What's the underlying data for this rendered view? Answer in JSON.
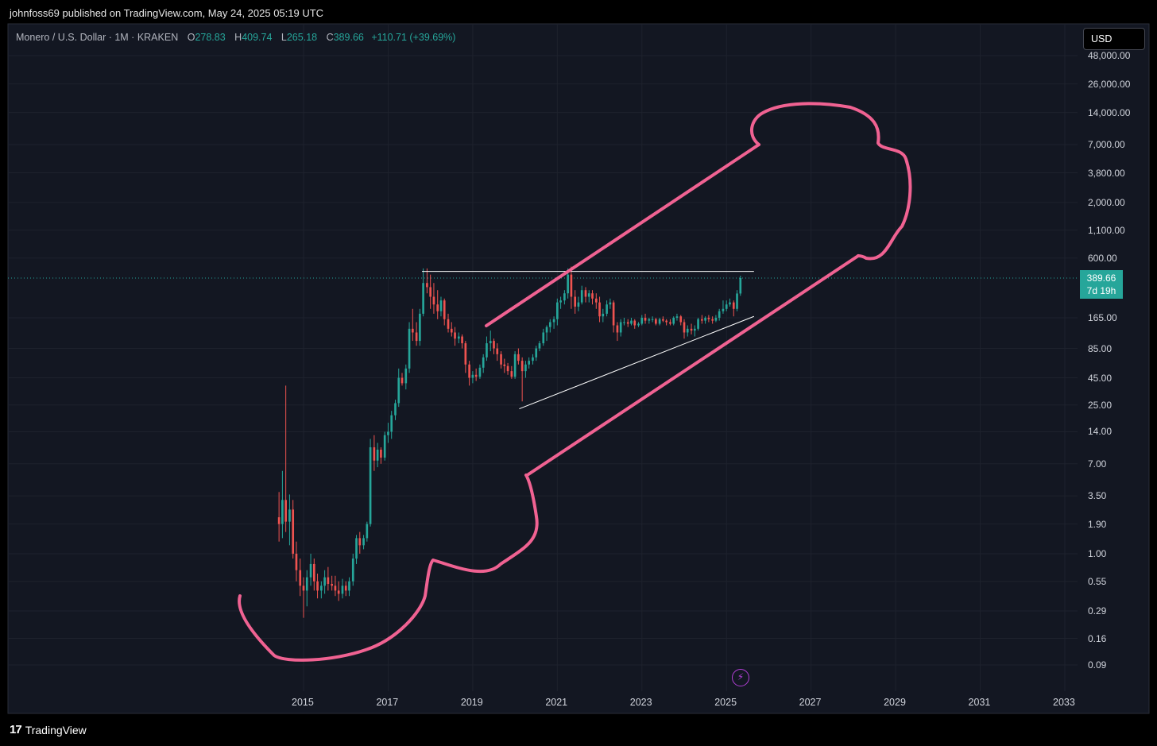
{
  "published": {
    "author": "johnfoss69",
    "text": "johnfoss69 published on TradingView.com, May 24, 2025 05:19 UTC"
  },
  "legend": {
    "symbol": "Monero / U.S. Dollar · 1M · KRAKEN",
    "open_label": "O",
    "open": "278.83",
    "high_label": "H",
    "high": "409.74",
    "low_label": "L",
    "low": "265.18",
    "close_label": "C",
    "close": "389.66",
    "change": "+110.71 (+39.69%)"
  },
  "currency_button": "USD",
  "price_badge": {
    "price": "389.66",
    "countdown": "7d 19h"
  },
  "footer": {
    "logo": "TradingView"
  },
  "colors": {
    "background": "#131722",
    "up": "#26a69a",
    "down": "#ef5350",
    "drawing": "#f06292",
    "trendline": "#ffffff"
  },
  "icons": {
    "bolt": "lightning-icon",
    "logo": "tradingview-logo-icon"
  },
  "chart_data": {
    "type": "candlestick",
    "title": "Monero / U.S. Dollar",
    "interval": "1M",
    "exchange": "KRAKEN",
    "y_scale": "log",
    "y_tick_labels": [
      "48,000.00",
      "26,000.00",
      "14,000.00",
      "7,000.00",
      "3,800.00",
      "2,000.00",
      "1,100.00",
      "600.00",
      "165.00",
      "85.00",
      "45.00",
      "25.00",
      "14.00",
      "7.00",
      "3.50",
      "1.90",
      "1.00",
      "0.55",
      "0.29",
      "0.16",
      "0.09"
    ],
    "y_ticks": [
      48000,
      26000,
      14000,
      7000,
      3800,
      2000,
      1100,
      600,
      165,
      85,
      45,
      25,
      14,
      7,
      3.5,
      1.9,
      1,
      0.55,
      0.29,
      0.16,
      0.09
    ],
    "x_tick_labels": [
      "2015",
      "2017",
      "2019",
      "2021",
      "2023",
      "2025",
      "2027",
      "2029",
      "2031",
      "2033"
    ],
    "x_ticks": [
      2015,
      2017,
      2019,
      2021,
      2023,
      2025,
      2027,
      2029,
      2031,
      2033
    ],
    "x_range": [
      2013.2,
      2033.3
    ],
    "y_range": [
      0.07,
      60000
    ],
    "grid": true,
    "candles": [
      {
        "t": 2014.42,
        "o": 2.2,
        "h": 3.8,
        "l": 1.3,
        "c": 1.9
      },
      {
        "t": 2014.5,
        "o": 1.9,
        "h": 6.0,
        "l": 1.4,
        "c": 3.2
      },
      {
        "t": 2014.58,
        "o": 3.2,
        "h": 38.0,
        "l": 1.6,
        "c": 2.0
      },
      {
        "t": 2014.67,
        "o": 2.0,
        "h": 3.6,
        "l": 1.2,
        "c": 2.6
      },
      {
        "t": 2014.75,
        "o": 2.6,
        "h": 3.2,
        "l": 0.9,
        "c": 1.0
      },
      {
        "t": 2014.83,
        "o": 1.0,
        "h": 1.3,
        "l": 0.55,
        "c": 0.7
      },
      {
        "t": 2014.92,
        "o": 0.7,
        "h": 0.9,
        "l": 0.4,
        "c": 0.5
      },
      {
        "t": 2015.0,
        "o": 0.5,
        "h": 0.6,
        "l": 0.25,
        "c": 0.45
      },
      {
        "t": 2015.08,
        "o": 0.45,
        "h": 0.7,
        "l": 0.32,
        "c": 0.6
      },
      {
        "t": 2015.17,
        "o": 0.6,
        "h": 1.0,
        "l": 0.5,
        "c": 0.8
      },
      {
        "t": 2015.25,
        "o": 0.8,
        "h": 0.9,
        "l": 0.45,
        "c": 0.55
      },
      {
        "t": 2015.33,
        "o": 0.55,
        "h": 0.65,
        "l": 0.38,
        "c": 0.45
      },
      {
        "t": 2015.42,
        "o": 0.45,
        "h": 0.55,
        "l": 0.38,
        "c": 0.5
      },
      {
        "t": 2015.5,
        "o": 0.5,
        "h": 0.7,
        "l": 0.42,
        "c": 0.6
      },
      {
        "t": 2015.58,
        "o": 0.6,
        "h": 0.75,
        "l": 0.45,
        "c": 0.52
      },
      {
        "t": 2015.67,
        "o": 0.52,
        "h": 0.62,
        "l": 0.45,
        "c": 0.5
      },
      {
        "t": 2015.75,
        "o": 0.5,
        "h": 0.62,
        "l": 0.4,
        "c": 0.45
      },
      {
        "t": 2015.83,
        "o": 0.45,
        "h": 0.55,
        "l": 0.36,
        "c": 0.42
      },
      {
        "t": 2015.92,
        "o": 0.42,
        "h": 0.58,
        "l": 0.38,
        "c": 0.5
      },
      {
        "t": 2016.0,
        "o": 0.5,
        "h": 0.55,
        "l": 0.4,
        "c": 0.45
      },
      {
        "t": 2016.08,
        "o": 0.45,
        "h": 0.6,
        "l": 0.4,
        "c": 0.55
      },
      {
        "t": 2016.17,
        "o": 0.55,
        "h": 1.0,
        "l": 0.5,
        "c": 0.9
      },
      {
        "t": 2016.25,
        "o": 0.9,
        "h": 1.5,
        "l": 0.8,
        "c": 1.4
      },
      {
        "t": 2016.33,
        "o": 1.4,
        "h": 1.6,
        "l": 1.0,
        "c": 1.2
      },
      {
        "t": 2016.42,
        "o": 1.2,
        "h": 1.5,
        "l": 1.1,
        "c": 1.4
      },
      {
        "t": 2016.5,
        "o": 1.4,
        "h": 2.0,
        "l": 1.3,
        "c": 1.9
      },
      {
        "t": 2016.58,
        "o": 1.9,
        "h": 12.0,
        "l": 1.8,
        "c": 10.0
      },
      {
        "t": 2016.67,
        "o": 10.0,
        "h": 13.0,
        "l": 6.0,
        "c": 7.5
      },
      {
        "t": 2016.75,
        "o": 7.5,
        "h": 11.0,
        "l": 6.5,
        "c": 9.5
      },
      {
        "t": 2016.83,
        "o": 9.5,
        "h": 10.0,
        "l": 7.0,
        "c": 8.0
      },
      {
        "t": 2016.92,
        "o": 8.0,
        "h": 14.0,
        "l": 7.5,
        "c": 13.0
      },
      {
        "t": 2017.0,
        "o": 13.0,
        "h": 17.0,
        "l": 11.0,
        "c": 14.0
      },
      {
        "t": 2017.08,
        "o": 14.0,
        "h": 22.0,
        "l": 12.0,
        "c": 20.0
      },
      {
        "t": 2017.17,
        "o": 20.0,
        "h": 28.0,
        "l": 18.0,
        "c": 26.0
      },
      {
        "t": 2017.25,
        "o": 26.0,
        "h": 55.0,
        "l": 24.0,
        "c": 45.0
      },
      {
        "t": 2017.33,
        "o": 45.0,
        "h": 50.0,
        "l": 38.0,
        "c": 40.0
      },
      {
        "t": 2017.42,
        "o": 40.0,
        "h": 60.0,
        "l": 35.0,
        "c": 55.0
      },
      {
        "t": 2017.5,
        "o": 55.0,
        "h": 150.0,
        "l": 50.0,
        "c": 130.0
      },
      {
        "t": 2017.58,
        "o": 130.0,
        "h": 200.0,
        "l": 100.0,
        "c": 120.0
      },
      {
        "t": 2017.67,
        "o": 120.0,
        "h": 150.0,
        "l": 90.0,
        "c": 100.0
      },
      {
        "t": 2017.75,
        "o": 100.0,
        "h": 200.0,
        "l": 90.0,
        "c": 180.0
      },
      {
        "t": 2017.83,
        "o": 180.0,
        "h": 480.0,
        "l": 170.0,
        "c": 350.0
      },
      {
        "t": 2017.92,
        "o": 350.0,
        "h": 480.0,
        "l": 280.0,
        "c": 320.0
      },
      {
        "t": 2018.0,
        "o": 320.0,
        "h": 420.0,
        "l": 200.0,
        "c": 260.0
      },
      {
        "t": 2018.08,
        "o": 260.0,
        "h": 350.0,
        "l": 180.0,
        "c": 220.0
      },
      {
        "t": 2018.17,
        "o": 220.0,
        "h": 300.0,
        "l": 160.0,
        "c": 190.0
      },
      {
        "t": 2018.25,
        "o": 190.0,
        "h": 260.0,
        "l": 170.0,
        "c": 240.0
      },
      {
        "t": 2018.33,
        "o": 240.0,
        "h": 250.0,
        "l": 140.0,
        "c": 160.0
      },
      {
        "t": 2018.42,
        "o": 160.0,
        "h": 180.0,
        "l": 120.0,
        "c": 130.0
      },
      {
        "t": 2018.5,
        "o": 130.0,
        "h": 150.0,
        "l": 110.0,
        "c": 120.0
      },
      {
        "t": 2018.58,
        "o": 120.0,
        "h": 135.0,
        "l": 90.0,
        "c": 105.0
      },
      {
        "t": 2018.67,
        "o": 105.0,
        "h": 120.0,
        "l": 95.0,
        "c": 110.0
      },
      {
        "t": 2018.75,
        "o": 110.0,
        "h": 115.0,
        "l": 85.0,
        "c": 95.0
      },
      {
        "t": 2018.83,
        "o": 95.0,
        "h": 100.0,
        "l": 50.0,
        "c": 60.0
      },
      {
        "t": 2018.92,
        "o": 60.0,
        "h": 65.0,
        "l": 38.0,
        "c": 45.0
      },
      {
        "t": 2019.0,
        "o": 45.0,
        "h": 52.0,
        "l": 40.0,
        "c": 48.0
      },
      {
        "t": 2019.08,
        "o": 48.0,
        "h": 55.0,
        "l": 42.0,
        "c": 46.0
      },
      {
        "t": 2019.17,
        "o": 46.0,
        "h": 60.0,
        "l": 44.0,
        "c": 56.0
      },
      {
        "t": 2019.25,
        "o": 56.0,
        "h": 75.0,
        "l": 50.0,
        "c": 70.0
      },
      {
        "t": 2019.33,
        "o": 70.0,
        "h": 110.0,
        "l": 65.0,
        "c": 95.0
      },
      {
        "t": 2019.42,
        "o": 95.0,
        "h": 125.0,
        "l": 80.0,
        "c": 100.0
      },
      {
        "t": 2019.5,
        "o": 100.0,
        "h": 105.0,
        "l": 75.0,
        "c": 85.0
      },
      {
        "t": 2019.58,
        "o": 85.0,
        "h": 95.0,
        "l": 65.0,
        "c": 75.0
      },
      {
        "t": 2019.67,
        "o": 75.0,
        "h": 80.0,
        "l": 55.0,
        "c": 60.0
      },
      {
        "t": 2019.75,
        "o": 60.0,
        "h": 68.0,
        "l": 50.0,
        "c": 58.0
      },
      {
        "t": 2019.83,
        "o": 58.0,
        "h": 62.0,
        "l": 48.0,
        "c": 52.0
      },
      {
        "t": 2019.92,
        "o": 52.0,
        "h": 58.0,
        "l": 44.0,
        "c": 46.0
      },
      {
        "t": 2020.0,
        "o": 46.0,
        "h": 80.0,
        "l": 44.0,
        "c": 75.0
      },
      {
        "t": 2020.08,
        "o": 75.0,
        "h": 85.0,
        "l": 60.0,
        "c": 65.0
      },
      {
        "t": 2020.17,
        "o": 65.0,
        "h": 70.0,
        "l": 27.0,
        "c": 52.0
      },
      {
        "t": 2020.25,
        "o": 52.0,
        "h": 65.0,
        "l": 45.0,
        "c": 60.0
      },
      {
        "t": 2020.33,
        "o": 60.0,
        "h": 70.0,
        "l": 55.0,
        "c": 65.0
      },
      {
        "t": 2020.42,
        "o": 65.0,
        "h": 75.0,
        "l": 60.0,
        "c": 70.0
      },
      {
        "t": 2020.5,
        "o": 70.0,
        "h": 90.0,
        "l": 65.0,
        "c": 85.0
      },
      {
        "t": 2020.58,
        "o": 85.0,
        "h": 100.0,
        "l": 80.0,
        "c": 95.0
      },
      {
        "t": 2020.67,
        "o": 95.0,
        "h": 130.0,
        "l": 90.0,
        "c": 120.0
      },
      {
        "t": 2020.75,
        "o": 120.0,
        "h": 140.0,
        "l": 100.0,
        "c": 135.0
      },
      {
        "t": 2020.83,
        "o": 135.0,
        "h": 160.0,
        "l": 120.0,
        "c": 150.0
      },
      {
        "t": 2020.92,
        "o": 150.0,
        "h": 170.0,
        "l": 130.0,
        "c": 160.0
      },
      {
        "t": 2021.0,
        "o": 160.0,
        "h": 250.0,
        "l": 140.0,
        "c": 230.0
      },
      {
        "t": 2021.08,
        "o": 230.0,
        "h": 260.0,
        "l": 200.0,
        "c": 240.0
      },
      {
        "t": 2021.17,
        "o": 240.0,
        "h": 300.0,
        "l": 220.0,
        "c": 280.0
      },
      {
        "t": 2021.25,
        "o": 280.0,
        "h": 480.0,
        "l": 250.0,
        "c": 420.0
      },
      {
        "t": 2021.33,
        "o": 420.0,
        "h": 500.0,
        "l": 200.0,
        "c": 260.0
      },
      {
        "t": 2021.42,
        "o": 260.0,
        "h": 300.0,
        "l": 180.0,
        "c": 210.0
      },
      {
        "t": 2021.5,
        "o": 210.0,
        "h": 260.0,
        "l": 190.0,
        "c": 230.0
      },
      {
        "t": 2021.58,
        "o": 230.0,
        "h": 330.0,
        "l": 220.0,
        "c": 300.0
      },
      {
        "t": 2021.67,
        "o": 300.0,
        "h": 320.0,
        "l": 230.0,
        "c": 260.0
      },
      {
        "t": 2021.75,
        "o": 260.0,
        "h": 300.0,
        "l": 230.0,
        "c": 280.0
      },
      {
        "t": 2021.83,
        "o": 280.0,
        "h": 300.0,
        "l": 220.0,
        "c": 250.0
      },
      {
        "t": 2021.92,
        "o": 250.0,
        "h": 280.0,
        "l": 200.0,
        "c": 230.0
      },
      {
        "t": 2022.0,
        "o": 230.0,
        "h": 260.0,
        "l": 150.0,
        "c": 170.0
      },
      {
        "t": 2022.08,
        "o": 170.0,
        "h": 200.0,
        "l": 150.0,
        "c": 180.0
      },
      {
        "t": 2022.17,
        "o": 180.0,
        "h": 240.0,
        "l": 170.0,
        "c": 220.0
      },
      {
        "t": 2022.25,
        "o": 220.0,
        "h": 250.0,
        "l": 200.0,
        "c": 230.0
      },
      {
        "t": 2022.33,
        "o": 230.0,
        "h": 240.0,
        "l": 120.0,
        "c": 140.0
      },
      {
        "t": 2022.42,
        "o": 140.0,
        "h": 150.0,
        "l": 100.0,
        "c": 120.0
      },
      {
        "t": 2022.5,
        "o": 120.0,
        "h": 160.0,
        "l": 110.0,
        "c": 150.0
      },
      {
        "t": 2022.58,
        "o": 150.0,
        "h": 165.0,
        "l": 140.0,
        "c": 150.0
      },
      {
        "t": 2022.67,
        "o": 150.0,
        "h": 160.0,
        "l": 135.0,
        "c": 145.0
      },
      {
        "t": 2022.75,
        "o": 145.0,
        "h": 165.0,
        "l": 140.0,
        "c": 155.0
      },
      {
        "t": 2022.83,
        "o": 155.0,
        "h": 160.0,
        "l": 130.0,
        "c": 140.0
      },
      {
        "t": 2022.92,
        "o": 140.0,
        "h": 150.0,
        "l": 135.0,
        "c": 145.0
      },
      {
        "t": 2023.0,
        "o": 145.0,
        "h": 175.0,
        "l": 140.0,
        "c": 165.0
      },
      {
        "t": 2023.08,
        "o": 165.0,
        "h": 180.0,
        "l": 145.0,
        "c": 155.0
      },
      {
        "t": 2023.17,
        "o": 155.0,
        "h": 165.0,
        "l": 145.0,
        "c": 160.0
      },
      {
        "t": 2023.25,
        "o": 160.0,
        "h": 170.0,
        "l": 150.0,
        "c": 160.0
      },
      {
        "t": 2023.33,
        "o": 160.0,
        "h": 165.0,
        "l": 140.0,
        "c": 145.0
      },
      {
        "t": 2023.42,
        "o": 145.0,
        "h": 165.0,
        "l": 140.0,
        "c": 160.0
      },
      {
        "t": 2023.5,
        "o": 160.0,
        "h": 170.0,
        "l": 150.0,
        "c": 155.0
      },
      {
        "t": 2023.58,
        "o": 155.0,
        "h": 160.0,
        "l": 140.0,
        "c": 150.0
      },
      {
        "t": 2023.67,
        "o": 150.0,
        "h": 160.0,
        "l": 140.0,
        "c": 145.0
      },
      {
        "t": 2023.75,
        "o": 145.0,
        "h": 170.0,
        "l": 140.0,
        "c": 165.0
      },
      {
        "t": 2023.83,
        "o": 165.0,
        "h": 180.0,
        "l": 155.0,
        "c": 170.0
      },
      {
        "t": 2023.92,
        "o": 170.0,
        "h": 175.0,
        "l": 140.0,
        "c": 150.0
      },
      {
        "t": 2024.0,
        "o": 150.0,
        "h": 160.0,
        "l": 105.0,
        "c": 120.0
      },
      {
        "t": 2024.08,
        "o": 120.0,
        "h": 140.0,
        "l": 110.0,
        "c": 130.0
      },
      {
        "t": 2024.17,
        "o": 130.0,
        "h": 145.0,
        "l": 115.0,
        "c": 125.0
      },
      {
        "t": 2024.25,
        "o": 125.0,
        "h": 140.0,
        "l": 110.0,
        "c": 130.0
      },
      {
        "t": 2024.33,
        "o": 130.0,
        "h": 165.0,
        "l": 125.0,
        "c": 160.0
      },
      {
        "t": 2024.42,
        "o": 160.0,
        "h": 175.0,
        "l": 145.0,
        "c": 155.0
      },
      {
        "t": 2024.5,
        "o": 155.0,
        "h": 170.0,
        "l": 145.0,
        "c": 165.0
      },
      {
        "t": 2024.58,
        "o": 165.0,
        "h": 175.0,
        "l": 150.0,
        "c": 160.0
      },
      {
        "t": 2024.67,
        "o": 160.0,
        "h": 170.0,
        "l": 145.0,
        "c": 155.0
      },
      {
        "t": 2024.75,
        "o": 155.0,
        "h": 175.0,
        "l": 150.0,
        "c": 165.0
      },
      {
        "t": 2024.83,
        "o": 165.0,
        "h": 200.0,
        "l": 155.0,
        "c": 190.0
      },
      {
        "t": 2024.92,
        "o": 190.0,
        "h": 240.0,
        "l": 180.0,
        "c": 200.0
      },
      {
        "t": 2025.0,
        "o": 200.0,
        "h": 240.0,
        "l": 190.0,
        "c": 220.0
      },
      {
        "t": 2025.08,
        "o": 220.0,
        "h": 250.0,
        "l": 210.0,
        "c": 230.0
      },
      {
        "t": 2025.17,
        "o": 230.0,
        "h": 240.0,
        "l": 170.0,
        "c": 200.0
      },
      {
        "t": 2025.25,
        "o": 200.0,
        "h": 300.0,
        "l": 190.0,
        "c": 278.83
      },
      {
        "t": 2025.33,
        "o": 278.83,
        "h": 409.74,
        "l": 265.18,
        "c": 389.66
      }
    ],
    "current_price": 389.66,
    "drawings": [
      {
        "type": "horizontal-trendline",
        "color": "#ffffff",
        "from": {
          "t": 2017.8,
          "v": 450
        },
        "to": {
          "t": 2025.65,
          "v": 450
        }
      },
      {
        "type": "rising-trendline",
        "color": "#ffffff",
        "from": {
          "t": 2020.1,
          "v": 23
        },
        "to": {
          "t": 2025.65,
          "v": 170
        }
      }
    ]
  }
}
